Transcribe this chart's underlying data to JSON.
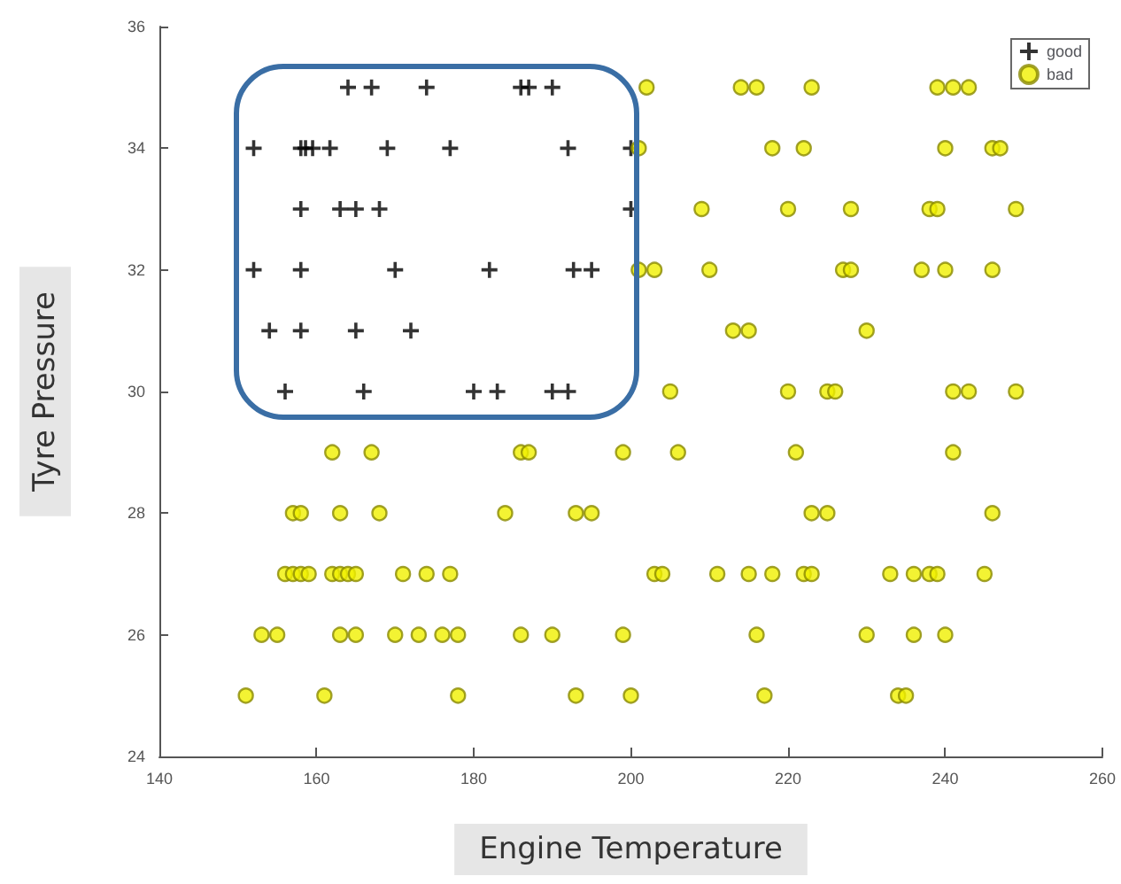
{
  "chart_data": {
    "type": "scatter",
    "xlabel": "Engine Temperature",
    "ylabel": "Tyre Pressure",
    "xlim": [
      140,
      260
    ],
    "ylim": [
      24,
      36
    ],
    "xticks": [
      140,
      160,
      180,
      200,
      220,
      240,
      260
    ],
    "yticks": [
      24,
      26,
      28,
      30,
      32,
      34,
      36
    ],
    "grid": false,
    "legend": "top right",
    "series": [
      {
        "name": "good",
        "color": "#000000",
        "marker": "cross",
        "x": [
          164,
          167,
          174,
          186,
          187,
          190,
          152,
          158,
          158.6,
          159.5,
          161.7,
          169,
          177,
          192,
          200,
          158,
          163,
          165,
          168,
          200,
          152,
          158,
          170,
          182,
          192.7,
          195,
          154,
          158,
          165,
          172,
          156,
          166,
          180,
          183,
          190,
          192
        ],
        "values": [
          35,
          35,
          35,
          35,
          35,
          35,
          34,
          34,
          34,
          34,
          34,
          34,
          34,
          34,
          34,
          33,
          33,
          33,
          33,
          33,
          32,
          32,
          32,
          32,
          32,
          32,
          31,
          31,
          31,
          31,
          30,
          30,
          30,
          30,
          30,
          30
        ]
      },
      {
        "name": "bad",
        "color": "#f0f000",
        "marker": "circle",
        "x": [
          202,
          214,
          216,
          223,
          239,
          241,
          243,
          201,
          218,
          222,
          240,
          246,
          247,
          209,
          220,
          228,
          238,
          239,
          249,
          201,
          203,
          210,
          227,
          228,
          237,
          240,
          246,
          213,
          215,
          230,
          205,
          220,
          225,
          226,
          241,
          243,
          249,
          162,
          167,
          186,
          187,
          199,
          206,
          221,
          241,
          157,
          158,
          163,
          168,
          184,
          193,
          195,
          223,
          225,
          246,
          156,
          157,
          158,
          159,
          162,
          163,
          164,
          165,
          171,
          174,
          177,
          203,
          204,
          211,
          215,
          218,
          222,
          223,
          233,
          236,
          238,
          239,
          245,
          153,
          155,
          163,
          165,
          170,
          173,
          176,
          178,
          186,
          190,
          199,
          216,
          230,
          236,
          240,
          151,
          161,
          178,
          193,
          200,
          217,
          234,
          235
        ],
        "values": [
          35,
          35,
          35,
          35,
          35,
          35,
          35,
          34,
          34,
          34,
          34,
          34,
          34,
          33,
          33,
          33,
          33,
          33,
          33,
          32,
          32,
          32,
          32,
          32,
          32,
          32,
          32,
          31,
          31,
          31,
          30,
          30,
          30,
          30,
          30,
          30,
          30,
          29,
          29,
          29,
          29,
          29,
          29,
          29,
          29,
          28,
          28,
          28,
          28,
          28,
          28,
          28,
          28,
          28,
          28,
          27,
          27,
          27,
          27,
          27,
          27,
          27,
          27,
          27,
          27,
          27,
          27,
          27,
          27,
          27,
          27,
          27,
          27,
          27,
          27,
          27,
          27,
          27,
          26,
          26,
          26,
          26,
          26,
          26,
          26,
          26,
          26,
          26,
          26,
          26,
          26,
          26,
          26,
          25,
          25,
          25,
          25,
          25,
          25,
          25,
          25
        ]
      }
    ]
  }
}
